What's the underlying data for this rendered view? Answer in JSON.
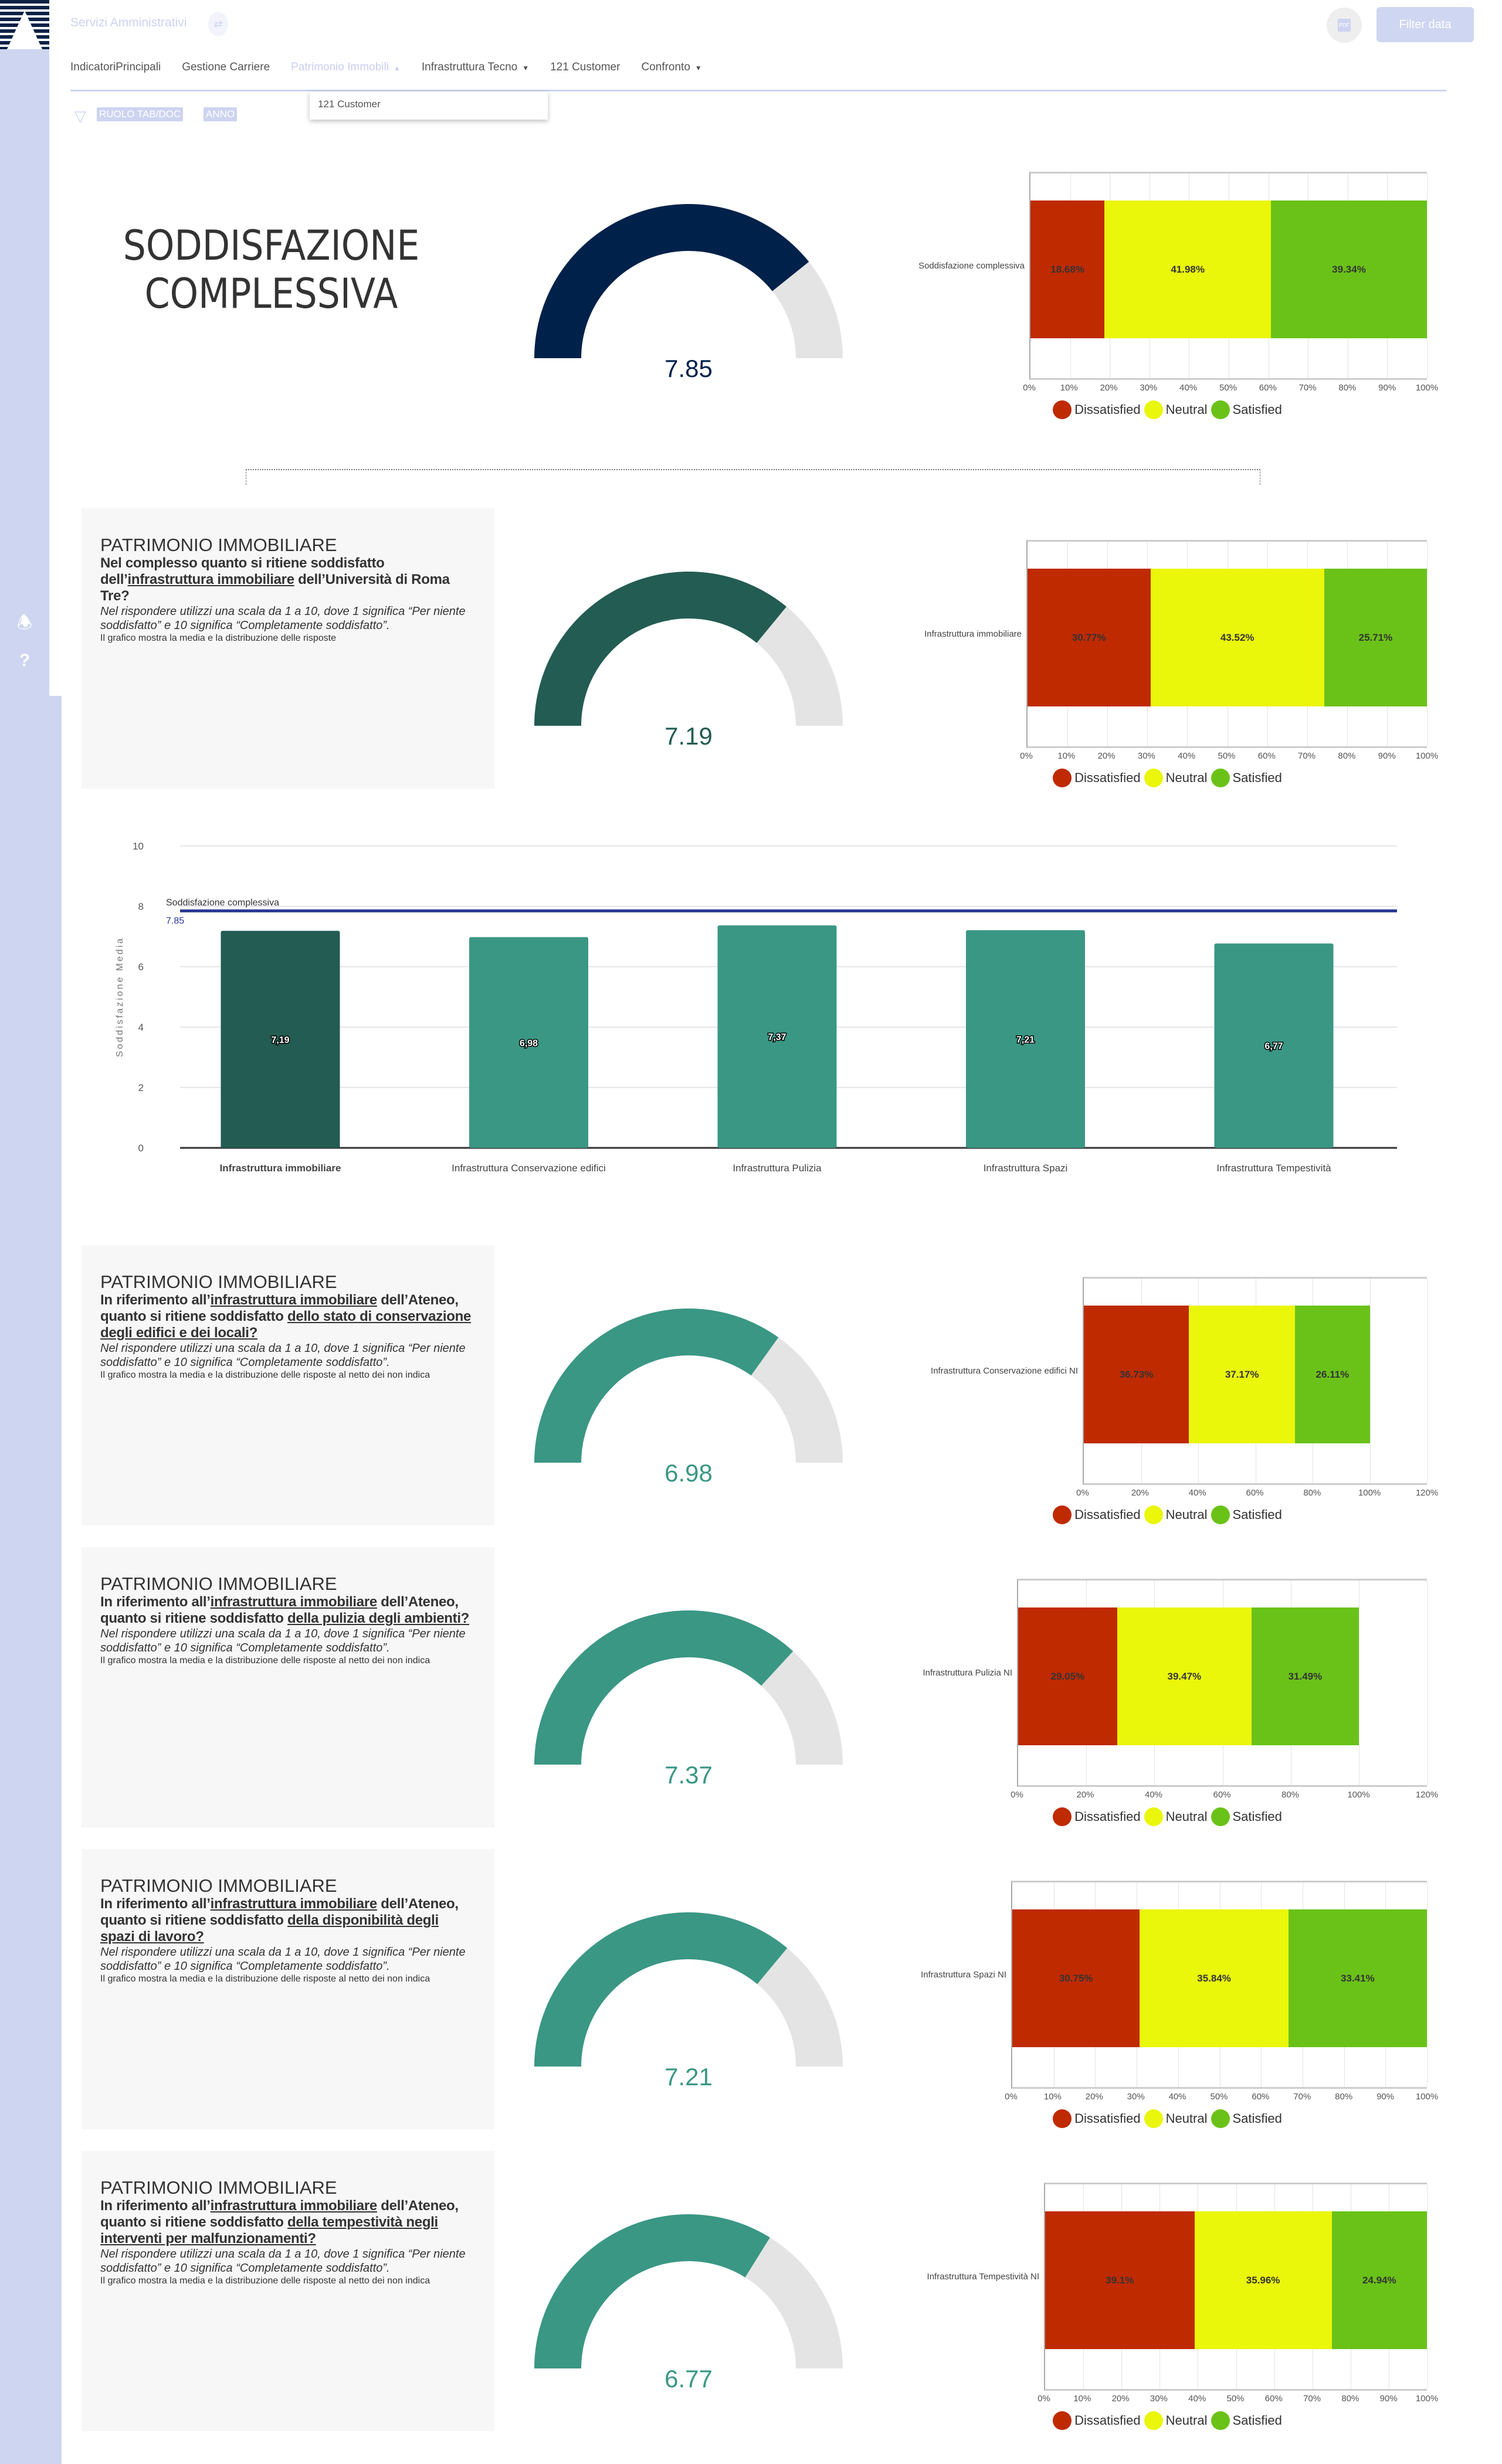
{
  "header": {
    "title": "Servizi Amministrativi",
    "pdf_label": "PDF",
    "filter_button": "Filter data"
  },
  "nav": {
    "items": [
      {
        "label": "IndicatoriPrincipali",
        "caret": ""
      },
      {
        "label": "Gestione Carriere",
        "caret": ""
      },
      {
        "label": "Patrimonio Immobili",
        "caret": "▲",
        "active": true
      },
      {
        "label": "Infrastruttura Tecno",
        "caret": "▼"
      },
      {
        "label": "121 Customer",
        "caret": ""
      },
      {
        "label": "Confronto",
        "caret": "▼"
      }
    ],
    "dropdown_item": "121 Customer"
  },
  "filters": {
    "chips": [
      "RUOLO TAB/DOC",
      "ANNO"
    ]
  },
  "legend": [
    {
      "label": "Dissatisfied",
      "color": "#bf2a00"
    },
    {
      "label": "Neutral",
      "color": "#eaf60a"
    },
    {
      "label": "Satisfied",
      "color": "#6ac218"
    }
  ],
  "overall": {
    "title_line1": "SODDISFAZIONE",
    "title_line2": "COMPLESSIVA",
    "gauge": {
      "value": 7.85,
      "max": 10,
      "label": "7.85",
      "color": "#00214a"
    },
    "distribution": {
      "category": "Soddisfazione complessiva",
      "values": [
        18.68,
        41.98,
        39.34
      ],
      "labels": [
        "18.68%",
        "41.98%",
        "39.34%"
      ],
      "axis_max": 100,
      "tick_step": 10
    }
  },
  "cards": [
    {
      "heading": "PATRIMONIO IMMOBILIARE",
      "question": [
        {
          "t": "Nel complesso quanto si ritiene soddisfatto dell’"
        },
        {
          "t": "infrastruttura immobiliare",
          "u": true
        },
        {
          "t": " dell’Università di Roma Tre?"
        }
      ],
      "scale": "Nel rispondere utilizzi una scala da 1 a 10, dove 1 significa “Per niente soddisfatto” e 10 significa “Completamente soddisfatto”.",
      "note": "Il grafico mostra la media e la distribuzione delle risposte",
      "gauge": {
        "value": 7.19,
        "max": 10,
        "label": "7.19",
        "color": "#235c52"
      },
      "distribution": {
        "category": "Infrastruttura immobiliare",
        "values": [
          30.77,
          43.52,
          25.71
        ],
        "labels": [
          "30.77%",
          "43.52%",
          "25.71%"
        ],
        "axis_max": 100,
        "tick_step": 10
      }
    },
    {
      "heading": "PATRIMONIO IMMOBILIARE",
      "question": [
        {
          "t": "In riferimento all’"
        },
        {
          "t": "infrastruttura immobiliare",
          "u": true
        },
        {
          "t": " dell’Ateneo, quanto si ritiene soddisfatto "
        },
        {
          "t": "dello stato di conservazione degli edifici e dei locali?",
          "u": true
        }
      ],
      "scale": "Nel rispondere utilizzi una scala da 1 a 10, dove 1 significa “Per niente soddisfatto” e 10 significa “Completamente soddisfatto”.",
      "note": "Il grafico mostra la media e la distribuzione delle risposte al netto dei non indica",
      "gauge": {
        "value": 6.98,
        "max": 10,
        "label": "6.98",
        "color": "#3a9784"
      },
      "distribution": {
        "category": "Infrastruttura Conservazione edifici NI",
        "values": [
          36.73,
          37.17,
          26.11
        ],
        "labels": [
          "36.73%",
          "37.17%",
          "26.11%"
        ],
        "axis_max": 120,
        "tick_step": 20
      }
    },
    {
      "heading": "PATRIMONIO IMMOBILIARE",
      "question": [
        {
          "t": "In riferimento all’"
        },
        {
          "t": "infrastruttura immobiliare",
          "u": true
        },
        {
          "t": " dell’Ateneo, quanto si ritiene soddisfatto "
        },
        {
          "t": "della pulizia degli ambienti?",
          "u": true
        }
      ],
      "scale": "Nel rispondere utilizzi una scala da 1 a 10, dove 1 significa “Per niente soddisfatto” e 10 significa “Completamente soddisfatto”.",
      "note": "Il grafico mostra la media e la distribuzione delle risposte al netto dei non indica",
      "gauge": {
        "value": 7.37,
        "max": 10,
        "label": "7.37",
        "color": "#3a9784"
      },
      "distribution": {
        "category": "Infrastruttura Pulizia NI",
        "values": [
          29.05,
          39.47,
          31.49
        ],
        "labels": [
          "29.05%",
          "39.47%",
          "31.49%"
        ],
        "axis_max": 120,
        "tick_step": 20
      }
    },
    {
      "heading": "PATRIMONIO IMMOBILIARE",
      "question": [
        {
          "t": "In riferimento all’"
        },
        {
          "t": "infrastruttura immobiliare",
          "u": true
        },
        {
          "t": " dell’Ateneo, quanto si ritiene soddisfatto "
        },
        {
          "t": "della disponibilità degli spazi di lavoro?",
          "u": true
        }
      ],
      "scale": "Nel rispondere utilizzi una scala da 1 a 10, dove 1 significa “Per niente soddisfatto” e 10 significa “Completamente soddisfatto”.",
      "note": "Il grafico mostra la media e la distribuzione delle risposte al netto dei non indica",
      "gauge": {
        "value": 7.21,
        "max": 10,
        "label": "7.21",
        "color": "#3a9784"
      },
      "distribution": {
        "category": "Infrastruttura Spazi NI",
        "values": [
          30.75,
          35.84,
          33.41
        ],
        "labels": [
          "30.75%",
          "35.84%",
          "33.41%"
        ],
        "axis_max": 100,
        "tick_step": 10
      }
    },
    {
      "heading": "PATRIMONIO IMMOBILIARE",
      "question": [
        {
          "t": "In riferimento all’"
        },
        {
          "t": "infrastruttura immobiliare",
          "u": true
        },
        {
          "t": " dell’Ateneo, quanto si ritiene soddisfatto "
        },
        {
          "t": "della tempestività negli interventi per malfunzionamenti?",
          "u": true
        }
      ],
      "scale": "Nel rispondere utilizzi una scala da 1 a 10, dove 1 significa “Per niente soddisfatto” e 10 significa “Completamente soddisfatto”.",
      "note": "Il grafico mostra la media e la distribuzione delle risposte al netto dei non indica",
      "gauge": {
        "value": 6.77,
        "max": 10,
        "label": "6.77",
        "color": "#3a9784"
      },
      "distribution": {
        "category": "Infrastruttura Tempestività NI",
        "values": [
          39.1,
          35.96,
          24.94
        ],
        "labels": [
          "39.1%",
          "35.96%",
          "24.94%"
        ],
        "axis_max": 100,
        "tick_step": 10
      }
    }
  ],
  "chart_data": {
    "type": "bar",
    "title": "",
    "xlabel": "",
    "ylabel": "Soddisfazione Media",
    "ylim": [
      0,
      10
    ],
    "yticks": [
      "0",
      "2",
      "4",
      "6",
      "8",
      "10"
    ],
    "categories": [
      "Infrastruttura immobiliare",
      "Infrastruttura Conservazione edifici",
      "Infrastruttura Pulizia",
      "Infrastruttura Spazi",
      "Infrastruttura Tempestività"
    ],
    "values": [
      7.19,
      6.98,
      7.37,
      7.21,
      6.77
    ],
    "value_labels": [
      "7,19",
      "6,98",
      "7,37",
      "7,21",
      "6,77"
    ],
    "bar_colors": [
      "#235c52",
      "#3a9784",
      "#3a9784",
      "#3a9784",
      "#3a9784"
    ],
    "reference_line": {
      "label": "Soddisfazione complessiva",
      "value": 7.85,
      "value_label": "7.85",
      "color": "#283593"
    },
    "grid": true
  }
}
